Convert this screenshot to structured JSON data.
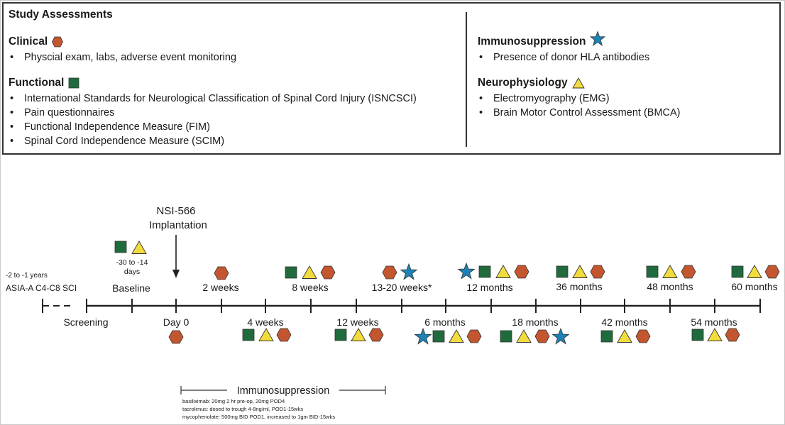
{
  "assessments": {
    "title": "Study Assessments",
    "clinical": {
      "heading": "Clinical",
      "icon": "hexagon-icon",
      "items": [
        "Physcial exam, labs, adverse event monitoring"
      ]
    },
    "functional": {
      "heading": "Functional",
      "icon": "square-icon",
      "items": [
        "International Standards for Neurological Classification of Spinal Cord Injury (ISNCSCI)",
        "Pain questionnaires",
        "Functional Independence Measure (FIM)",
        "Spinal Cord Independence Measure (SCIM)"
      ]
    },
    "immuno": {
      "heading": "Immunosuppression",
      "icon": "star-icon",
      "items": [
        "Presence of donor HLA antibodies"
      ]
    },
    "neuro": {
      "heading": "Neurophysiology",
      "icon": "triangle-icon",
      "items": [
        "Electromyography (EMG)",
        "Brain Motor Control Assessment (BMCA)"
      ]
    }
  },
  "colors": {
    "hexagon": "#c4562f",
    "square": "#1f6b3d",
    "star": "#1c82b5",
    "triangle": "#f2dc3d"
  },
  "timeline": {
    "implant_line1": "NSI-566",
    "implant_line2": "Implantation",
    "sci_line1": "-2 to -1 years",
    "sci_line2": "ASIA-A C4-C8 SCI",
    "baseline_range_1": "-30  to -14",
    "baseline_range_2": "days",
    "baseline_label": "Baseline",
    "screening_label": "Screening",
    "day0_label": "Day 0",
    "upper_labels": [
      "2 weeks",
      "8 weeks",
      "13-20 weeks*",
      "12 months",
      "36 months",
      "48 months",
      "60 months"
    ],
    "lower_labels": [
      "4 weeks",
      "12 weeks",
      "6 months",
      "18 months",
      "42 months",
      "54 months"
    ],
    "immuno_title": "Immunosuppression",
    "immuno_notes": [
      "basiliximab: 20mg 2 hr pre-op, 20mg POD4",
      "tacrolimus: dosed to trough 4-8ng/ml, POD1-15wks",
      "mycophenolate: 500mg BID POD1, increased to 1gm BID-15wks"
    ]
  }
}
